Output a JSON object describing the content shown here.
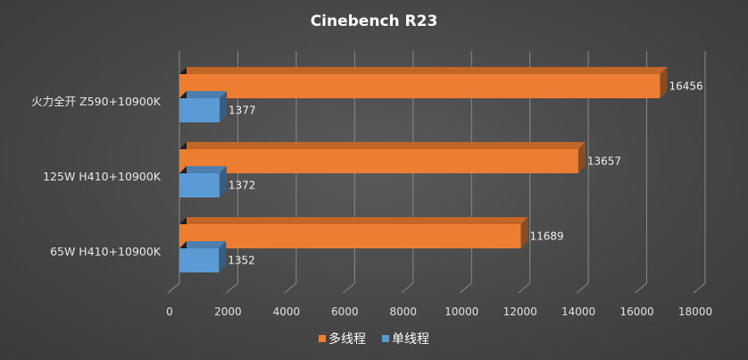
{
  "chart_data": {
    "type": "bar",
    "orientation": "horizontal",
    "title": "Cinebench  R23",
    "categories": [
      "火力全开 Z590+10900K",
      "125W H410+10900K",
      "65W H410+10900K"
    ],
    "series": [
      {
        "name": "多线程",
        "values": [
          16456,
          13657,
          11689
        ],
        "color": "#ed7d31"
      },
      {
        "name": "单线程",
        "values": [
          1377,
          1372,
          1352
        ],
        "color": "#5b9bd5"
      }
    ],
    "xlim": [
      0,
      18000
    ],
    "xticks": [
      "0",
      "2000",
      "4000",
      "6000",
      "8000",
      "10000",
      "12000",
      "14000",
      "16000",
      "18000"
    ],
    "grid": true,
    "legend": "bottom",
    "style": "3d"
  }
}
